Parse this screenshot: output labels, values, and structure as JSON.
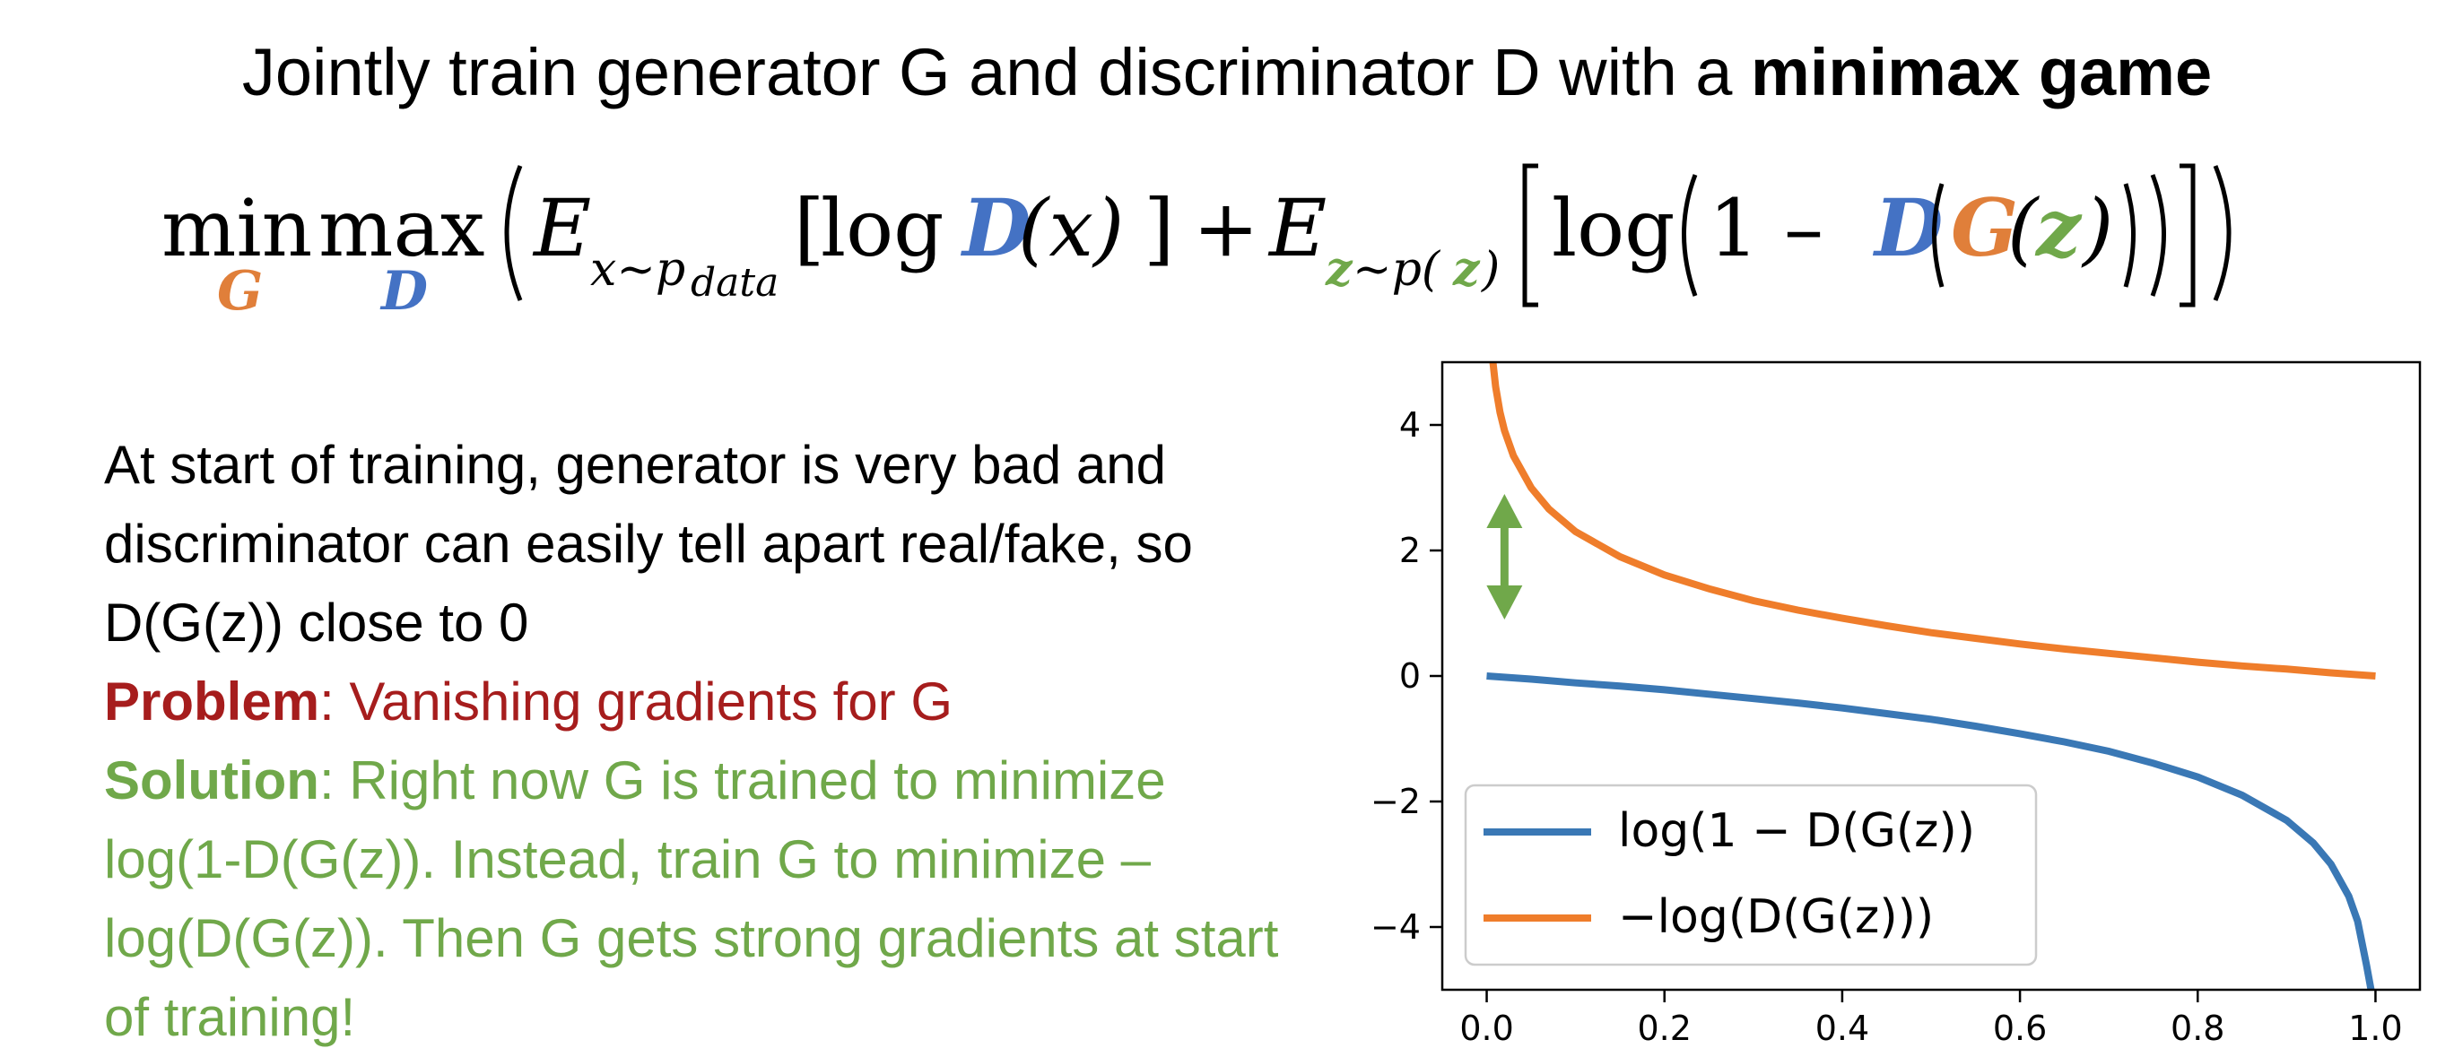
{
  "title": {
    "text": "Jointly train generator G and discriminator D with a ",
    "emphasis": "minimax game"
  },
  "formula": {
    "min": "min",
    "max": "max",
    "min_sub": "G",
    "max_sub": "D",
    "E": "E",
    "sub1": "x~p",
    "sub1_data": "data",
    "log": "log",
    "D": "D",
    "x": "(x)",
    "plus": "+",
    "z": "z",
    "sub2_mid": "~p(",
    "one_minus": "1 –",
    "G": "G",
    "colors": {
      "G": "#e07f3a",
      "D": "#4472c4",
      "z": "#70a84a"
    }
  },
  "body": {
    "intro": "At start of training, generator is very bad and discriminator can easily tell apart real/fake, so D(G(z)) close to 0",
    "problem_label": "Problem",
    "problem_text": ": Vanishing gradients for G",
    "solution_label": "Solution",
    "solution_text": ": Right now G is trained to minimize log(1-D(G(z)). Instead, train G to minimize –log(D(G(z)). Then G gets strong gradients at start of training!"
  },
  "chart_data": {
    "type": "line",
    "x_range": [
      0,
      1
    ],
    "ylim": [
      -5,
      5
    ],
    "x_ticks": [
      "0.0",
      "0.2",
      "0.4",
      "0.6",
      "0.8",
      "1.0"
    ],
    "x_tick_values": [
      0,
      0.2,
      0.4,
      0.6,
      0.8,
      1.0
    ],
    "y_ticks": [
      "−4",
      "−2",
      "0",
      "2",
      "4"
    ],
    "y_tick_values": [
      -4,
      -2,
      0,
      2,
      4
    ],
    "legend_position": "lower-left",
    "series": [
      {
        "name": "log(1 − D(G(z))",
        "color": "#3a78b5",
        "x": [
          0.0,
          0.05,
          0.1,
          0.15,
          0.2,
          0.25,
          0.3,
          0.35,
          0.4,
          0.45,
          0.5,
          0.55,
          0.6,
          0.65,
          0.7,
          0.75,
          0.8,
          0.85,
          0.9,
          0.93,
          0.95,
          0.97,
          0.98,
          0.99,
          0.995
        ],
        "y": [
          0.0,
          -0.05,
          -0.11,
          -0.16,
          -0.22,
          -0.29,
          -0.36,
          -0.43,
          -0.51,
          -0.6,
          -0.69,
          -0.8,
          -0.92,
          -1.05,
          -1.2,
          -1.39,
          -1.61,
          -1.9,
          -2.3,
          -2.66,
          -3.0,
          -3.51,
          -3.91,
          -4.61,
          -5.0
        ]
      },
      {
        "name": "−log(D(G(z)))",
        "color": "#ef7d2b",
        "x": [
          0.007,
          0.01,
          0.015,
          0.02,
          0.03,
          0.05,
          0.07,
          0.1,
          0.15,
          0.2,
          0.25,
          0.3,
          0.35,
          0.4,
          0.45,
          0.5,
          0.55,
          0.6,
          0.65,
          0.7,
          0.75,
          0.8,
          0.85,
          0.9,
          0.95,
          1.0
        ],
        "y": [
          5.0,
          4.61,
          4.2,
          3.91,
          3.51,
          3.0,
          2.66,
          2.3,
          1.9,
          1.61,
          1.39,
          1.2,
          1.05,
          0.92,
          0.8,
          0.69,
          0.6,
          0.51,
          0.43,
          0.36,
          0.29,
          0.22,
          0.16,
          0.11,
          0.05,
          0.0
        ]
      }
    ],
    "annotation": {
      "type": "double-arrow",
      "color": "#70a84a",
      "x": 0.02,
      "y_from": 0.9,
      "y_to": 2.9
    }
  }
}
